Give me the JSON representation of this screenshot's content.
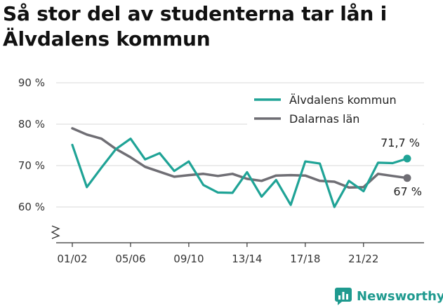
{
  "title": "Så stor del av studenterna tar lån i Älvdalens kommun",
  "brand": {
    "name": "Newsworthy"
  },
  "chart_data": {
    "type": "line",
    "ylim": [
      52,
      90
    ],
    "yticks": [
      60,
      70,
      80,
      90
    ],
    "ytick_suffix": " %",
    "x_count": 24,
    "xtick_labels": [
      {
        "index": 0,
        "label": "01/02"
      },
      {
        "index": 4,
        "label": "05/06"
      },
      {
        "index": 8,
        "label": "09/10"
      },
      {
        "index": 12,
        "label": "13/14"
      },
      {
        "index": 16,
        "label": "17/18"
      },
      {
        "index": 20,
        "label": "21/22"
      }
    ],
    "grid": true,
    "legend_position": "top-right",
    "series": [
      {
        "name": "Älvdalens kommun",
        "color": "#1fa396",
        "end_label": "71,7 %",
        "values": [
          75.0,
          64.8,
          69.5,
          74.0,
          76.5,
          71.5,
          73.0,
          68.7,
          71.0,
          65.3,
          63.5,
          63.4,
          68.4,
          62.5,
          66.5,
          60.5,
          71.0,
          70.5,
          60.0,
          66.3,
          63.8,
          70.7,
          70.6,
          71.7
        ]
      },
      {
        "name": "Dalarnas län",
        "color": "#6f6e74",
        "end_label": "67 %",
        "values": [
          79.0,
          77.5,
          76.5,
          74.0,
          72.0,
          69.7,
          68.5,
          67.3,
          67.7,
          68.0,
          67.5,
          68.0,
          66.8,
          66.3,
          67.6,
          67.7,
          67.6,
          66.3,
          66.1,
          64.7,
          64.8,
          68.0,
          67.5,
          67.0
        ]
      }
    ]
  }
}
